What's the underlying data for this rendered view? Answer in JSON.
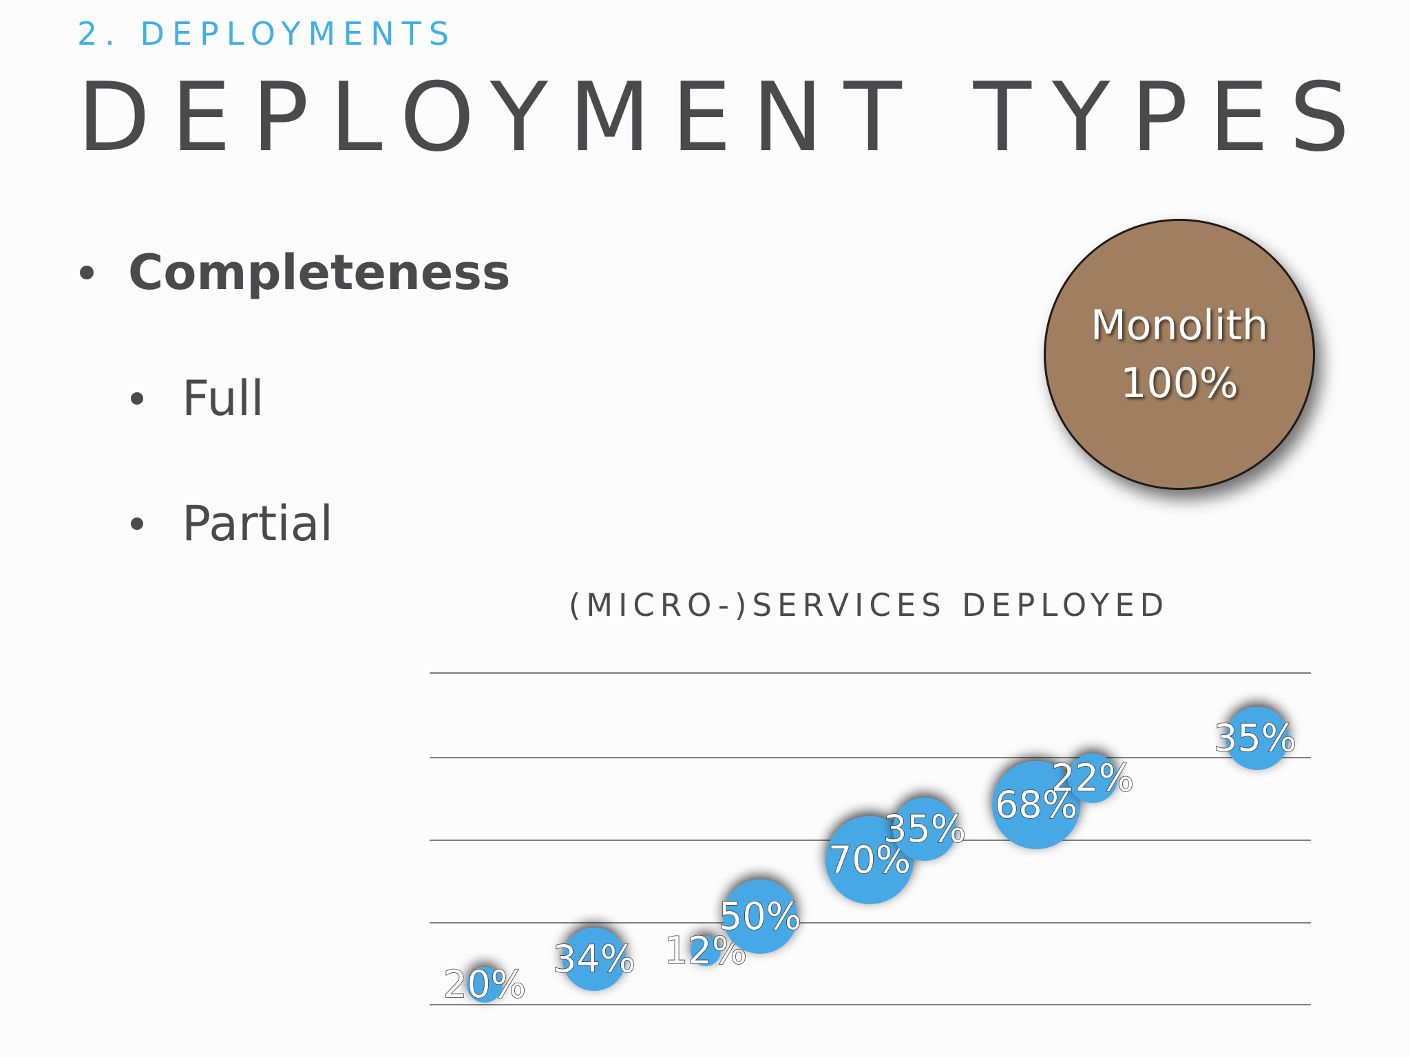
{
  "slide": {
    "section_label": "2. DEPLOYMENTS",
    "title": "DEPLOYMENT TYPES",
    "bullets": [
      {
        "text": "Completeness",
        "level": 1,
        "bold": true
      },
      {
        "text": "Full",
        "level": 2,
        "bold": false
      },
      {
        "text": "Partial",
        "level": 2,
        "bold": false
      }
    ],
    "monolith": {
      "name": "Monolith",
      "value": "100%",
      "color": "#a07f60"
    }
  },
  "chart_data": {
    "type": "scatter",
    "title": "(MICRO-)SERVICES DEPLOYED",
    "gridlines": 5,
    "grid": true,
    "bubble_color": "#46a8e6",
    "points": [
      {
        "label": "20%",
        "value": 20
      },
      {
        "label": "34%",
        "value": 34
      },
      {
        "label": "12%",
        "value": 12
      },
      {
        "label": "50%",
        "value": 50
      },
      {
        "label": "70%",
        "value": 70
      },
      {
        "label": "35%",
        "value": 35
      },
      {
        "label": "68%",
        "value": 68
      },
      {
        "label": "22%",
        "value": 22
      },
      {
        "label": "35%",
        "value": 35
      }
    ]
  }
}
